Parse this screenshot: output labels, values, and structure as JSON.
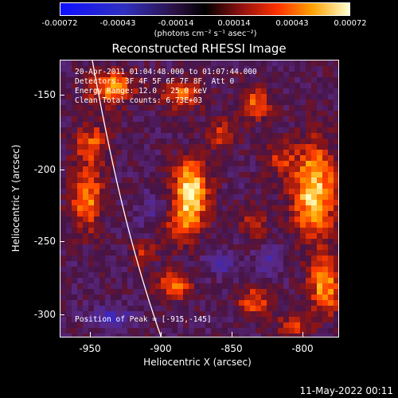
{
  "colorbar": {
    "ticks": [
      "-0.00072",
      "-0.00043",
      "-0.00014",
      "0.00014",
      "0.00043",
      "0.00072"
    ],
    "units": "(photons cm⁻² s⁻¹ asec⁻²)"
  },
  "title": "Reconstructed RHESSI Image",
  "info": {
    "time": "20-Apr-2011 01:04:48.000 to 01:07:44.000",
    "detectors": "Detectors: 3F 4F 5F 6F 7F 8F, Att 0",
    "energy": "Energy Range: 12.0 - 25.0 keV",
    "clean": "Clean     Total counts: 6.73E+03"
  },
  "peak": "Position of Peak = [-915,-145]",
  "axes": {
    "xlabel": "Heliocentric X (arcsec)",
    "ylabel": "Heliocentric Y (arcsec)",
    "xticks": [
      "-950",
      "-900",
      "-850",
      "-800"
    ],
    "yticks": [
      "-150",
      "-200",
      "-250",
      "-300"
    ]
  },
  "timestamp": "11-May-2022 00:11",
  "colors": {
    "background": "#000000",
    "limb": "#ffffff"
  }
}
